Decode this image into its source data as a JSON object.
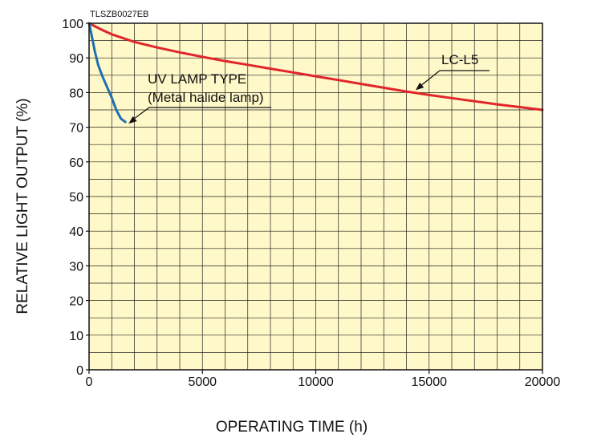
{
  "chart_data": {
    "type": "line",
    "code": "TLSZB0027EB",
    "xlabel": "OPERATING TIME (h)",
    "ylabel": "RELATIVE LIGHT OUTPUT (%)",
    "xlim": [
      0,
      20000
    ],
    "ylim": [
      0,
      100
    ],
    "xticks": [
      0,
      5000,
      10000,
      15000,
      20000
    ],
    "yticks": [
      0,
      10,
      20,
      30,
      40,
      50,
      60,
      70,
      80,
      90,
      100
    ],
    "grid": true,
    "background": "#fff8c8",
    "series": [
      {
        "name": "LC-L5",
        "color": "#e0262b",
        "x": [
          0,
          500,
          1000,
          2000,
          3000,
          4000,
          5000,
          6000,
          7000,
          8000,
          9000,
          10000,
          11000,
          12000,
          13000,
          14000,
          15000,
          16000,
          17000,
          18000,
          19000,
          20000
        ],
        "y": [
          100,
          98.3,
          96.8,
          94.6,
          93.0,
          91.6,
          90.3,
          89.1,
          88.0,
          86.9,
          85.8,
          84.7,
          83.6,
          82.5,
          81.4,
          80.3,
          79.3,
          78.4,
          77.5,
          76.6,
          75.8,
          75.0
        ]
      },
      {
        "name": "UV LAMP TYPE\n(Metal halide lamp)",
        "color": "#1f6fb2",
        "x": [
          0,
          100,
          250,
          400,
          600,
          800,
          1000,
          1200,
          1400,
          1600
        ],
        "y": [
          100,
          97,
          92,
          88,
          84.5,
          81.5,
          78.5,
          75,
          72.5,
          71.5
        ]
      }
    ],
    "annotations": [
      {
        "series": "LC-L5",
        "label": "LC-L5"
      },
      {
        "series": "UV",
        "line1": "UV LAMP TYPE",
        "line2": "(Metal halide lamp)"
      }
    ]
  }
}
